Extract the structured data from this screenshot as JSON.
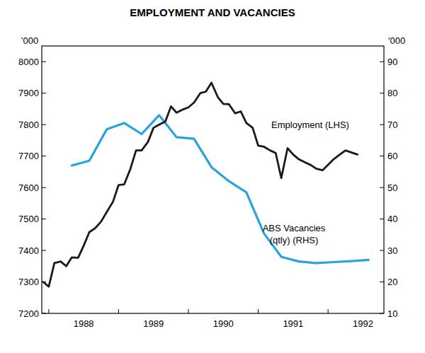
{
  "chart_data": {
    "type": "line",
    "title": "EMPLOYMENT AND VACANCIES",
    "y_label": "'000",
    "y2_label": "'000",
    "xlim": [
      1987.9,
      1992.8
    ],
    "xticks": [
      {
        "value": 1988,
        "label": "1988"
      },
      {
        "value": 1989,
        "label": "1989"
      },
      {
        "value": 1990,
        "label": "1990"
      },
      {
        "value": 1991,
        "label": "1991"
      },
      {
        "value": 1992,
        "label": "1992"
      }
    ],
    "ylim": [
      7200,
      8050
    ],
    "yticks": [
      7200,
      7300,
      7400,
      7500,
      7600,
      7700,
      7800,
      7900,
      8000
    ],
    "y2lim": [
      10,
      95
    ],
    "y2ticks": [
      10,
      20,
      30,
      40,
      50,
      60,
      70,
      80,
      90
    ],
    "grid": false,
    "series": [
      {
        "name": "Employment (LHS)",
        "color": "#1a1a1a",
        "x": [
          1987.92,
          1988,
          1988.08,
          1988.17,
          1988.25,
          1988.33,
          1988.42,
          1988.5,
          1988.58,
          1988.67,
          1988.75,
          1988.83,
          1988.92,
          1989,
          1989.08,
          1989.17,
          1989.25,
          1989.33,
          1989.42,
          1989.5,
          1989.58,
          1989.67,
          1989.75,
          1989.83,
          1989.92,
          1990,
          1990.08,
          1990.17,
          1990.25,
          1990.33,
          1990.42,
          1990.5,
          1990.58,
          1990.67,
          1990.75,
          1990.83,
          1990.92,
          1991,
          1991.08,
          1991.17,
          1991.25,
          1991.33,
          1991.42,
          1991.5,
          1991.58,
          1991.67,
          1991.75,
          1991.83,
          1991.92,
          1992,
          1992.08,
          1992.17,
          1992.25,
          1992.33,
          1992.42
        ],
        "values": [
          7300,
          7285,
          7360,
          7365,
          7350,
          7378,
          7377,
          7415,
          7458,
          7472,
          7492,
          7522,
          7555,
          7608,
          7610,
          7660,
          7718,
          7718,
          7745,
          7790,
          7800,
          7810,
          7858,
          7838,
          7848,
          7855,
          7870,
          7900,
          7905,
          7933,
          7888,
          7866,
          7865,
          7836,
          7842,
          7805,
          7790,
          7733,
          7730,
          7718,
          7710,
          7630,
          7725,
          7705,
          7690,
          7680,
          7672,
          7660,
          7655,
          7672,
          7690,
          7705,
          7718,
          7712,
          7705
        ]
      },
      {
        "name": "ABS Vacancies (qtly) (RHS)",
        "color": "#29a3e0",
        "axis": "y2",
        "x": [
          1988.33,
          1988.58,
          1988.83,
          1989.08,
          1989.33,
          1989.58,
          1989.83,
          1990.08,
          1990.33,
          1990.58,
          1990.83,
          1991.08,
          1991.33,
          1991.58,
          1991.83,
          1992.08,
          1992.33,
          1992.58
        ],
        "values": [
          57,
          58.5,
          68.5,
          70.5,
          67,
          73,
          66,
          65.5,
          56.5,
          52,
          48.5,
          35.5,
          28,
          26.5,
          26,
          26.3,
          26.6,
          27
        ]
      }
    ]
  }
}
